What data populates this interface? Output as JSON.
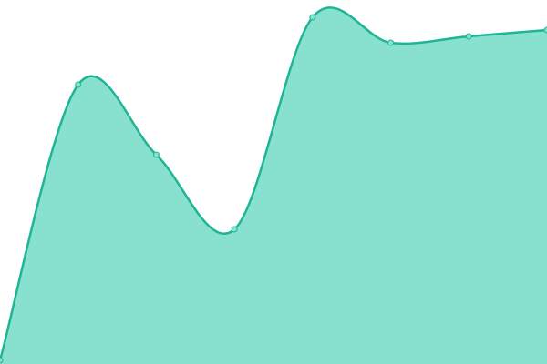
{
  "chart_data": {
    "type": "area",
    "categories": [
      null,
      null,
      null,
      null,
      null,
      null,
      null,
      null
    ],
    "values": [
      4,
      307,
      230,
      148,
      381,
      353,
      360,
      367
    ],
    "color": "#1fb594",
    "fill": "#88e0cf",
    "ylim": [
      0,
      400
    ],
    "smooth": true,
    "markers": true
  }
}
